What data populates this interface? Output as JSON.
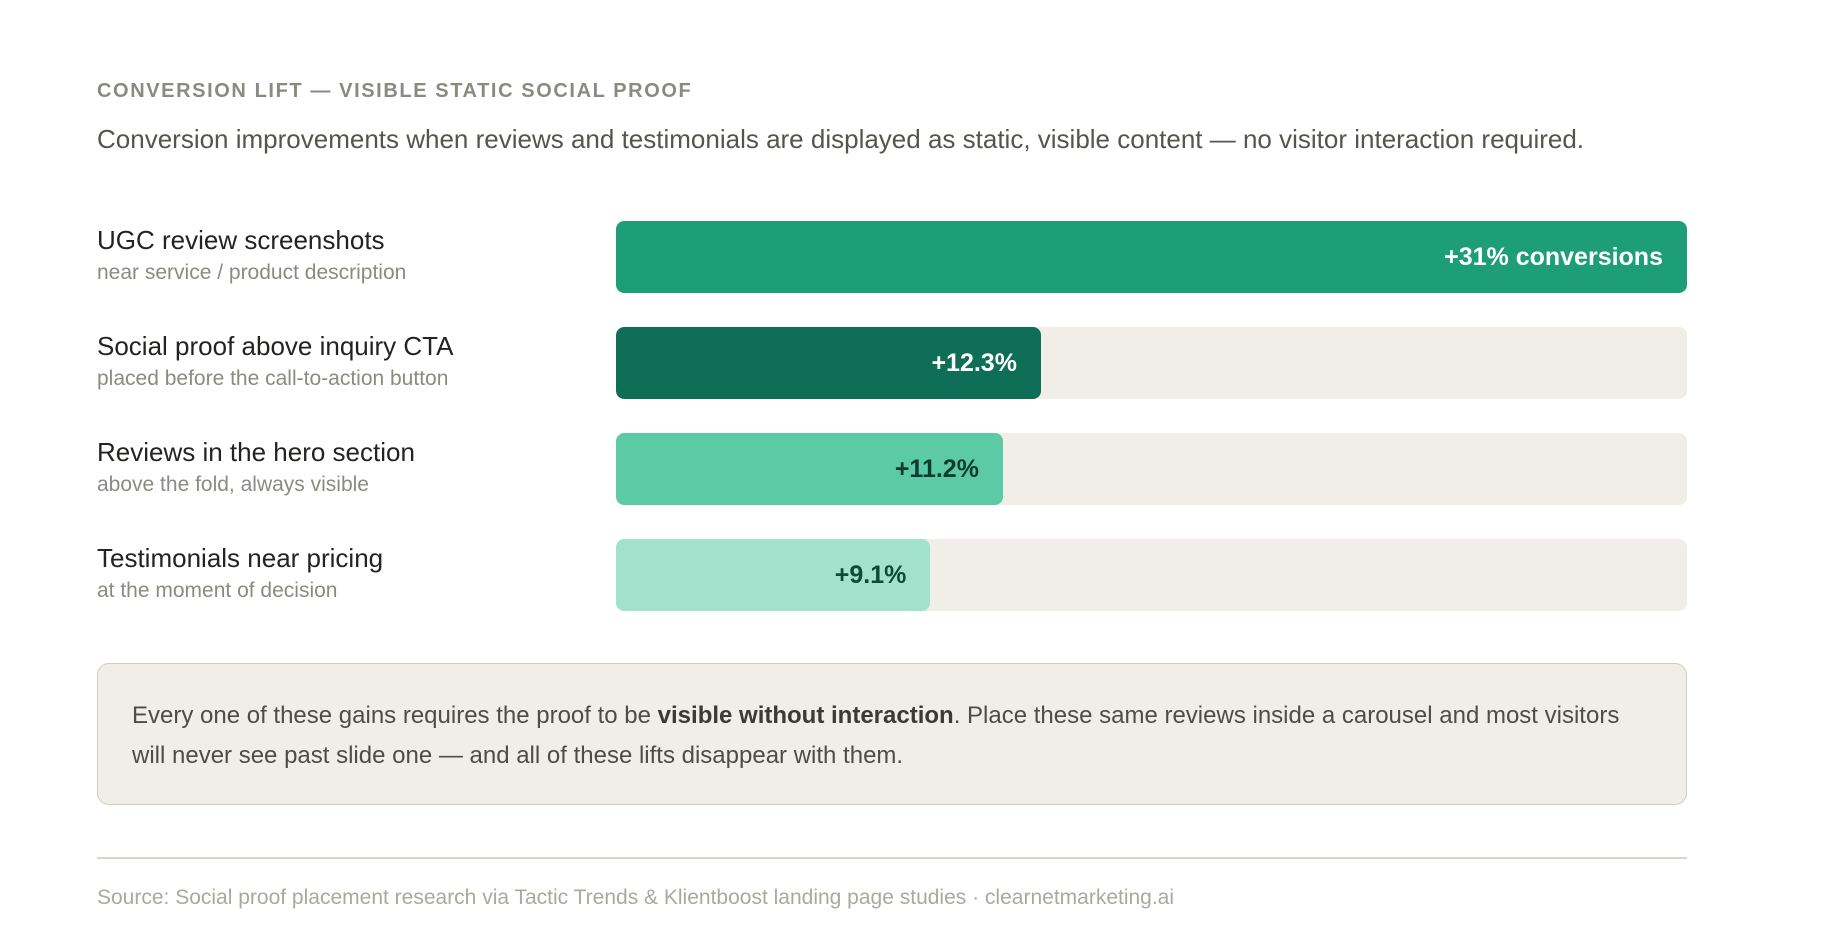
{
  "header": {
    "eyebrow": "CONVERSION LIFT — VISIBLE STATIC SOCIAL PROOF",
    "subtitle": "Conversion improvements when reviews and testimonials are displayed as static, visible content — no visitor interaction required."
  },
  "chart_data": {
    "type": "bar",
    "orientation": "horizontal",
    "xlim": [
      0,
      31
    ],
    "grid": false,
    "categories": [
      "UGC review screenshots",
      "Social proof above inquiry CTA",
      "Reviews in the hero section",
      "Testimonials near pricing"
    ],
    "sublabels": [
      "near service / product description",
      "placed before the call-to-action button",
      "above the fold, always visible",
      "at the moment of decision"
    ],
    "values": [
      31,
      12.3,
      11.2,
      9.1
    ],
    "value_labels": [
      "+31% conversions",
      "+12.3%",
      "+11.2%",
      "+9.1%"
    ],
    "colors": [
      "#1e9e76",
      "#0f6e58",
      "#5ccaa5",
      "#a2e2cc"
    ],
    "label_colors": [
      "#ffffff",
      "#ffffff",
      "#0d3b2e",
      "#0d4a38"
    ]
  },
  "note": {
    "before": "Every one of these gains requires the proof to be ",
    "bold": "visible without interaction",
    "after": ". Place these same reviews inside a carousel and most visitors will never see past slide one — and all of these lifts disappear with them."
  },
  "footer": {
    "source": "Source: Social proof placement research via Tactic Trends & Klientboost landing page studies · clearnetmarketing.ai"
  }
}
